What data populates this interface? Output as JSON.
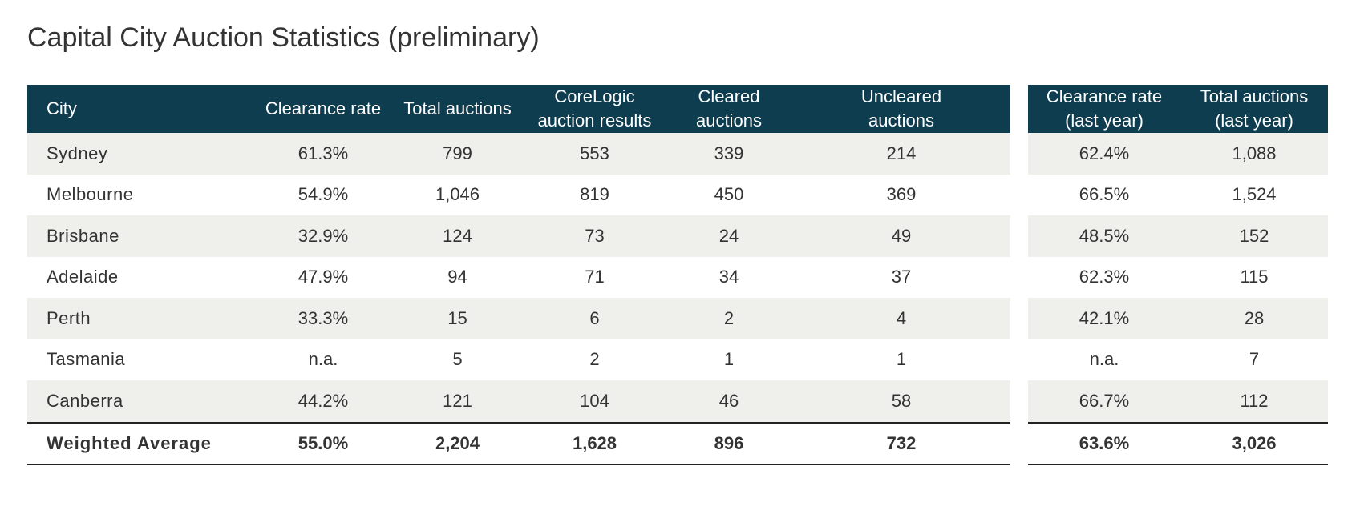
{
  "title": "Capital City Auction Statistics (preliminary)",
  "colors": {
    "header_bg": "#0f3d50",
    "row_alt": "#efefeb",
    "text": "#333333"
  },
  "chart_data": {
    "type": "table",
    "title": "Capital City Auction Statistics (preliminary)",
    "headers": {
      "city": "City",
      "clearance_rate": "Clearance rate",
      "total_auctions": "Total auctions",
      "corelogic_results_1": "CoreLogic",
      "corelogic_results_2": "auction results",
      "cleared_1": "Cleared",
      "cleared_2": "auctions",
      "uncleared_1": "Uncleared",
      "uncleared_2": "auctions",
      "clearance_ly_1": "Clearance rate",
      "clearance_ly_2": "(last year)",
      "total_ly_1": "Total auctions",
      "total_ly_2": "(last year)"
    },
    "rows": [
      {
        "city": "Sydney",
        "clearance_rate": "61.3%",
        "total_auctions": "799",
        "corelogic_results": "553",
        "cleared": "339",
        "uncleared": "214",
        "clearance_rate_last_year": "62.4%",
        "total_auctions_last_year": "1,088"
      },
      {
        "city": "Melbourne",
        "clearance_rate": "54.9%",
        "total_auctions": "1,046",
        "corelogic_results": "819",
        "cleared": "450",
        "uncleared": "369",
        "clearance_rate_last_year": "66.5%",
        "total_auctions_last_year": "1,524"
      },
      {
        "city": "Brisbane",
        "clearance_rate": "32.9%",
        "total_auctions": "124",
        "corelogic_results": "73",
        "cleared": "24",
        "uncleared": "49",
        "clearance_rate_last_year": "48.5%",
        "total_auctions_last_year": "152"
      },
      {
        "city": "Adelaide",
        "clearance_rate": "47.9%",
        "total_auctions": "94",
        "corelogic_results": "71",
        "cleared": "34",
        "uncleared": "37",
        "clearance_rate_last_year": "62.3%",
        "total_auctions_last_year": "115"
      },
      {
        "city": "Perth",
        "clearance_rate": "33.3%",
        "total_auctions": "15",
        "corelogic_results": "6",
        "cleared": "2",
        "uncleared": "4",
        "clearance_rate_last_year": "42.1%",
        "total_auctions_last_year": "28"
      },
      {
        "city": "Tasmania",
        "clearance_rate": "n.a.",
        "total_auctions": "5",
        "corelogic_results": "2",
        "cleared": "1",
        "uncleared": "1",
        "clearance_rate_last_year": "n.a.",
        "total_auctions_last_year": "7"
      },
      {
        "city": "Canberra",
        "clearance_rate": "44.2%",
        "total_auctions": "121",
        "corelogic_results": "104",
        "cleared": "46",
        "uncleared": "58",
        "clearance_rate_last_year": "66.7%",
        "total_auctions_last_year": "112"
      }
    ],
    "total": {
      "city": "Weighted Average",
      "clearance_rate": "55.0%",
      "total_auctions": "2,204",
      "corelogic_results": "1,628",
      "cleared": "896",
      "uncleared": "732",
      "clearance_rate_last_year": "63.6%",
      "total_auctions_last_year": "3,026"
    }
  }
}
